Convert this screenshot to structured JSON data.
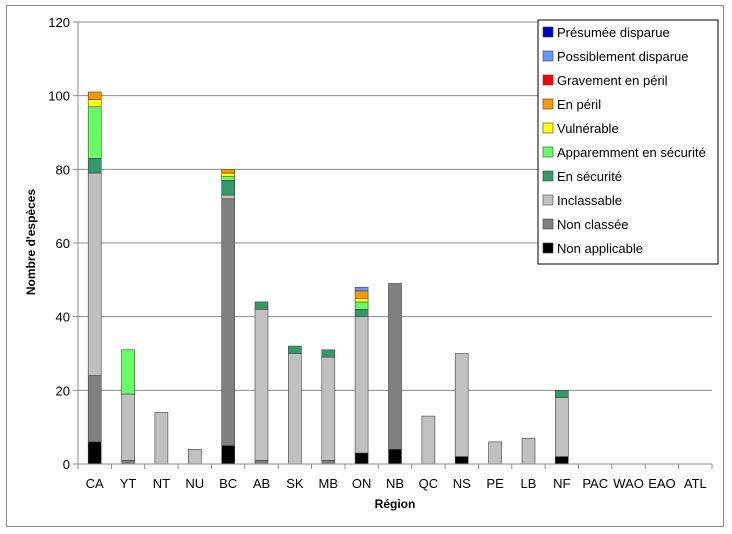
{
  "chart_data": {
    "type": "stacked-bar",
    "title": "",
    "xlabel": "Région",
    "ylabel": "Nombre d'espèces",
    "ylim": [
      0,
      120
    ],
    "yticks": [
      0,
      20,
      40,
      60,
      80,
      100,
      120
    ],
    "grid": true,
    "legend_position": "top-right",
    "categories": [
      "CA",
      "YT",
      "NT",
      "NU",
      "BC",
      "AB",
      "SK",
      "MB",
      "ON",
      "NB",
      "QC",
      "NS",
      "PE",
      "LB",
      "NF",
      "PAC",
      "WAO",
      "EAO",
      "ATL"
    ],
    "series": [
      {
        "name": "Non applicable",
        "color": "#000000",
        "values": [
          6,
          0,
          0,
          0,
          5,
          0,
          0,
          0,
          3,
          4,
          0,
          2,
          0,
          0,
          2,
          0,
          0,
          0,
          0
        ]
      },
      {
        "name": "Non classée",
        "color": "#808080",
        "values": [
          18,
          1,
          0,
          0,
          67,
          1,
          0,
          1,
          0,
          45,
          0,
          0,
          0,
          0,
          0,
          0,
          0,
          0,
          0
        ]
      },
      {
        "name": "Inclassable",
        "color": "#c0c0c0",
        "values": [
          55,
          18,
          14,
          4,
          1,
          41,
          30,
          28,
          37,
          0,
          13,
          28,
          6,
          7,
          16,
          0,
          0,
          0,
          0
        ]
      },
      {
        "name": "En sécurité",
        "color": "#339966",
        "values": [
          4,
          0,
          0,
          0,
          4,
          2,
          2,
          2,
          2,
          0,
          0,
          0,
          0,
          0,
          2,
          0,
          0,
          0,
          0
        ]
      },
      {
        "name": "Apparemment en sécurité",
        "color": "#66ff66",
        "values": [
          14,
          12,
          0,
          0,
          1,
          0,
          0,
          0,
          2,
          0,
          0,
          0,
          0,
          0,
          0,
          0,
          0,
          0,
          0
        ]
      },
      {
        "name": "Vulnérable",
        "color": "#ffff00",
        "values": [
          2,
          0,
          0,
          0,
          1,
          0,
          0,
          0,
          1,
          0,
          0,
          0,
          0,
          0,
          0,
          0,
          0,
          0,
          0
        ]
      },
      {
        "name": "En péril",
        "color": "#ff9900",
        "values": [
          2,
          0,
          0,
          0,
          1,
          0,
          0,
          0,
          2,
          0,
          0,
          0,
          0,
          0,
          0,
          0,
          0,
          0,
          0
        ]
      },
      {
        "name": "Gravement en péril",
        "color": "#ff0000",
        "values": [
          0,
          0,
          0,
          0,
          0,
          0,
          0,
          0,
          0,
          0,
          0,
          0,
          0,
          0,
          0,
          0,
          0,
          0,
          0
        ]
      },
      {
        "name": "Possiblement disparue",
        "color": "#6699ff",
        "values": [
          0,
          0,
          0,
          0,
          0,
          0,
          0,
          0,
          1,
          0,
          0,
          0,
          0,
          0,
          0,
          0,
          0,
          0,
          0
        ]
      },
      {
        "name": "Présumée disparue",
        "color": "#0000cc",
        "values": [
          0,
          0,
          0,
          0,
          0,
          0,
          0,
          0,
          0,
          0,
          0,
          0,
          0,
          0,
          0,
          0,
          0,
          0,
          0
        ]
      }
    ],
    "legend_order": [
      "Présumée disparue",
      "Possiblement disparue",
      "Gravement en péril",
      "En péril",
      "Vulnérable",
      "Apparemment en sécurité",
      "En sécurité",
      "Inclassable",
      "Non classée",
      "Non applicable"
    ]
  }
}
